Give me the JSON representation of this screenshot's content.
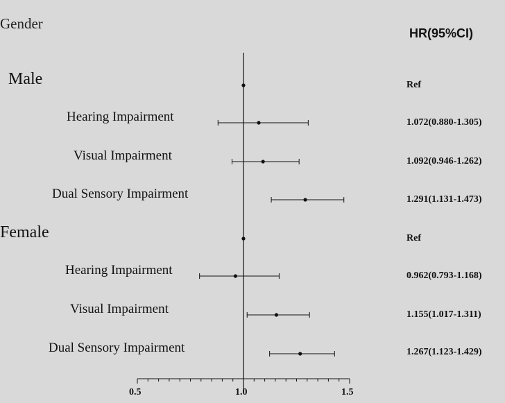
{
  "headers": {
    "group_column": "Gender",
    "hr_column": "HR(95%CI)"
  },
  "chart_data": {
    "type": "forest",
    "xlim": [
      0.5,
      1.5
    ],
    "xticks": [
      "0.5",
      "1.0",
      "1.5"
    ],
    "reference_line": 1.0,
    "rows": [
      {
        "label": "Male",
        "kind": "group",
        "hr": 1.0,
        "hr_text": "Ref"
      },
      {
        "label": "Hearing Impairment",
        "kind": "item",
        "hr": 1.072,
        "low": 0.88,
        "high": 1.305,
        "hr_text": "1.072(0.880-1.305)"
      },
      {
        "label": "Visual Impairment",
        "kind": "item",
        "hr": 1.092,
        "low": 0.946,
        "high": 1.262,
        "hr_text": "1.092(0.946-1.262)"
      },
      {
        "label": "Dual Sensory Impairment",
        "kind": "item",
        "hr": 1.291,
        "low": 1.131,
        "high": 1.473,
        "hr_text": "1.291(1.131-1.473)"
      },
      {
        "label": "Female",
        "kind": "group",
        "hr": 1.0,
        "hr_text": "Ref"
      },
      {
        "label": "Hearing Impairment",
        "kind": "item",
        "hr": 0.962,
        "low": 0.793,
        "high": 1.168,
        "hr_text": "0.962(0.793-1.168)"
      },
      {
        "label": "Visual Impairment",
        "kind": "item",
        "hr": 1.155,
        "low": 1.017,
        "high": 1.311,
        "hr_text": "1.155(1.017-1.311)"
      },
      {
        "label": "Dual Sensory Impairment",
        "kind": "item",
        "hr": 1.267,
        "low": 1.123,
        "high": 1.429,
        "hr_text": "1.267(1.123-1.429)"
      }
    ]
  }
}
